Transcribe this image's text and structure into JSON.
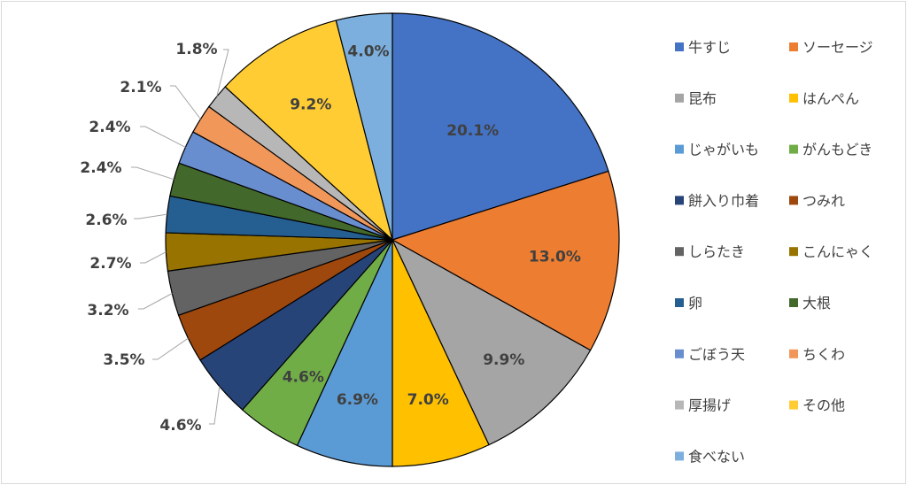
{
  "chart_data": {
    "type": "pie",
    "title": "",
    "start_angle_deg": 0,
    "direction": "clockwise",
    "legend_position": "right",
    "slices": [
      {
        "name": "牛すじ",
        "value": 20.1,
        "label": "20.1%",
        "color": "#4472C4"
      },
      {
        "name": "ソーセージ",
        "value": 13.0,
        "label": "13.0%",
        "color": "#ED7D31"
      },
      {
        "name": "昆布",
        "value": 9.9,
        "label": "9.9%",
        "color": "#A5A5A5"
      },
      {
        "name": "はんぺん",
        "value": 7.0,
        "label": "7.0%",
        "color": "#FFC000"
      },
      {
        "name": "じゃがいも",
        "value": 6.9,
        "label": "6.9%",
        "color": "#5B9BD5"
      },
      {
        "name": "がんもどき",
        "value": 4.6,
        "label": "4.6%",
        "color": "#70AD47"
      },
      {
        "name": "餅入り巾着",
        "value": 4.6,
        "label": "4.6%",
        "color": "#264478"
      },
      {
        "name": "つみれ",
        "value": 3.5,
        "label": "3.5%",
        "color": "#9E480E"
      },
      {
        "name": "しらたき",
        "value": 3.2,
        "label": "3.2%",
        "color": "#636363"
      },
      {
        "name": "こんにゃく",
        "value": 2.7,
        "label": "2.7%",
        "color": "#997300"
      },
      {
        "name": "卵",
        "value": 2.6,
        "label": "2.6%",
        "color": "#255E91"
      },
      {
        "name": "大根",
        "value": 2.4,
        "label": "2.4%",
        "color": "#43682B"
      },
      {
        "name": "ごぼう天",
        "value": 2.4,
        "label": "2.4%",
        "color": "#698ED0"
      },
      {
        "name": "ちくわ",
        "value": 2.1,
        "label": "2.1%",
        "color": "#F1975A"
      },
      {
        "name": "厚揚げ",
        "value": 1.8,
        "label": "1.8%",
        "color": "#B7B7B7"
      },
      {
        "name": "その他",
        "value": 9.2,
        "label": "9.2%",
        "color": "#FFCD33"
      },
      {
        "name": "食べない",
        "value": 4.0,
        "label": "4.0%",
        "color": "#7CAFDD"
      }
    ]
  }
}
